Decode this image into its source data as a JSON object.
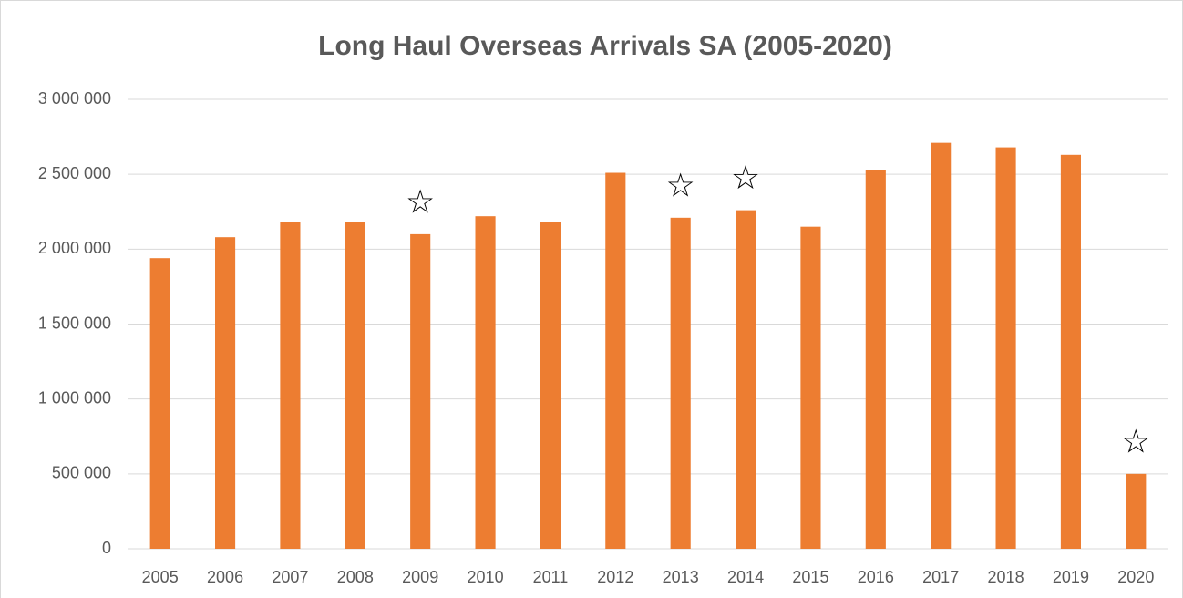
{
  "chart_data": {
    "type": "bar",
    "title": "Long Haul Overseas Arrivals SA (2005-2020)",
    "categories": [
      "2005",
      "2006",
      "2007",
      "2008",
      "2009",
      "2010",
      "2011",
      "2012",
      "2013",
      "2014",
      "2015",
      "2016",
      "2017",
      "2018",
      "2019",
      "2020"
    ],
    "values": [
      1940000,
      2080000,
      2180000,
      2180000,
      2100000,
      2220000,
      2180000,
      2510000,
      2210000,
      2260000,
      2150000,
      2530000,
      2710000,
      2680000,
      2630000,
      500000
    ],
    "color": "#ed7d31",
    "ylim": [
      0,
      3000000
    ],
    "yticks": [
      0,
      {
        "value": 500000,
        "label": "500 000"
      },
      {
        "value": 1000000,
        "label": "1 000 000"
      },
      {
        "value": 1500000,
        "label": "1 500 000"
      },
      {
        "value": 2000000,
        "label": "2 000 000"
      },
      {
        "value": 2500000,
        "label": "2 500 000"
      },
      {
        "value": 3000000,
        "label": "3 000 000"
      }
    ],
    "grid": true,
    "annotations": [
      {
        "text": "☆",
        "category": "2009"
      },
      {
        "text": "☆",
        "category": "2013"
      },
      {
        "text": "☆",
        "category": "2014"
      },
      {
        "text": "☆",
        "category": "2020"
      }
    ]
  }
}
